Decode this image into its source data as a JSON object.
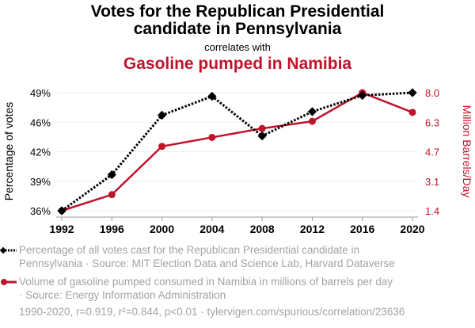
{
  "title_line1": "Votes for the Republican Presidential",
  "title_line2": "candidate in Pennsylvania",
  "subtitle": "correlates with",
  "title_line3": "Gasoline pumped in Namibia",
  "colors": {
    "series1": "#000000",
    "series2": "#c0132c",
    "grid": "#eeeeee",
    "legend_text": "#a3a3a3"
  },
  "legend": [
    {
      "icon": "black-dotted-diamond-line-icon",
      "text_line1": "Percentage of all votes cast for the Republican Presidential candidate in",
      "text_line2": "Pennsylvania · Source: MIT Election Data and Science Lab, Harvard Dataverse"
    },
    {
      "icon": "red-solid-circle-line-icon",
      "text_line1": "Volume of gasoline pumped consumed in Namibia in millions of barrels per day",
      "text_line2": "· Source: Energy Information Administration"
    }
  ],
  "footer": "1990-2020, r=0.919, r²=0.844, p<0.01 · tylervigen.com/spurious/correlation/23636",
  "chart_data": {
    "type": "line",
    "title": "Votes for the Republican Presidential candidate in Pennsylvania correlates with Gasoline pumped in Namibia",
    "x": [
      1992,
      1996,
      2000,
      2004,
      2008,
      2012,
      2016,
      2020
    ],
    "xtick_labels": [
      "1992",
      "1996",
      "2000",
      "2004",
      "2008",
      "2012",
      "2016",
      "2020"
    ],
    "ylabel_left": "Percentage of votes",
    "ylabel_right": "Million Barrels/Day",
    "ylim_left": [
      36.0,
      49.1
    ],
    "ylim_right": [
      1.4,
      8.0
    ],
    "yticks_left": [
      "36%",
      "39%",
      "42%",
      "46%",
      "49%"
    ],
    "yticks_right": [
      "1.4",
      "3.1",
      "4.7",
      "6.3",
      "8.0"
    ],
    "grid": true,
    "legend_placement": "bottom",
    "series": [
      {
        "name": "Percentage of all votes cast for the Republican Presidential candidate in Pennsylvania",
        "axis": "left",
        "style": "dotted",
        "marker": "diamond",
        "color": "#000000",
        "values": [
          36.0,
          40.0,
          46.6,
          48.7,
          44.3,
          47.0,
          48.8,
          49.1
        ]
      },
      {
        "name": "Volume of gasoline pumped consumed in Namibia in millions of barrels per day",
        "axis": "right",
        "style": "solid",
        "marker": "circle",
        "color": "#c0132c",
        "values": [
          1.4,
          2.3,
          5.0,
          5.5,
          6.0,
          6.4,
          8.0,
          6.9
        ]
      }
    ]
  }
}
